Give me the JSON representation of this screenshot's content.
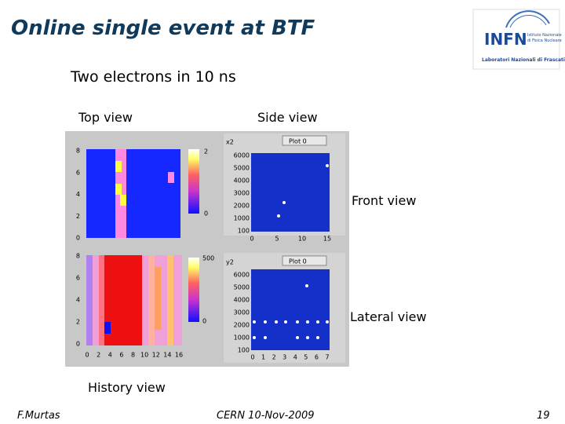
{
  "title": "Online single event at BTF",
  "subtitle": "Two electrons in 10 ns",
  "logo": {
    "name": "INFN",
    "line1": "Istituto Nazionale",
    "line2": "di Fisica Nucleare",
    "line3": "Laboratori Nazionali di Frascati"
  },
  "labels": {
    "top_view": "Top view",
    "side_view": "Side view",
    "front_view": "Front view",
    "lateral_view": "Lateral view",
    "history_view": "History view"
  },
  "panels": {
    "top_heatmap": {
      "yticks": [
        "8",
        "6",
        "4",
        "2",
        "0"
      ],
      "colorbar": [
        "2",
        "0"
      ]
    },
    "history_heatmap": {
      "yticks": [
        "8",
        "6",
        "4",
        "2",
        "0"
      ],
      "xticks": [
        "0",
        "2",
        "4",
        "6",
        "8",
        "10",
        "12",
        "14",
        "16"
      ],
      "colorbar": [
        "500",
        "0"
      ]
    },
    "side_plot": {
      "axis": "x2",
      "legend": "Plot 0",
      "yticks": [
        "6000",
        "5000",
        "4000",
        "3000",
        "2000",
        "1000",
        "100"
      ],
      "xticks": [
        "0",
        "5",
        "10",
        "15"
      ]
    },
    "lateral_plot": {
      "axis": "y2",
      "legend": "Plot 0",
      "yticks": [
        "6000",
        "5000",
        "4000",
        "3000",
        "2000",
        "1000",
        "100"
      ],
      "xticks": [
        "0",
        "1",
        "2",
        "3",
        "4",
        "5",
        "6",
        "7"
      ]
    }
  },
  "footer": {
    "author": "F.Murtas",
    "event": "CERN 10-Nov-2009",
    "page": "19"
  }
}
